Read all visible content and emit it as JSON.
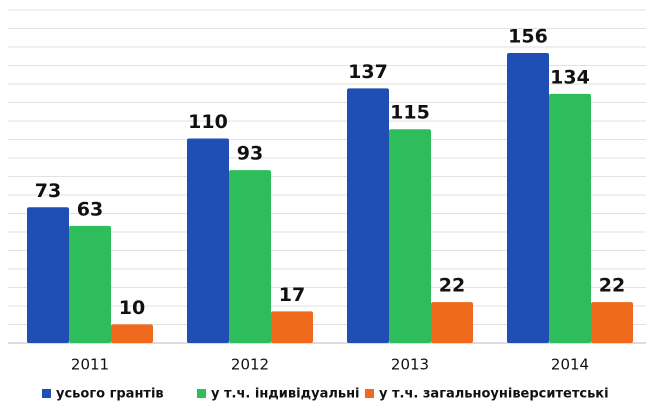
{
  "chart_data": {
    "type": "bar",
    "categories": [
      "2011",
      "2012",
      "2013",
      "2014"
    ],
    "series": [
      {
        "name": "усього грантів",
        "color": "#1f4fb4",
        "values": [
          73,
          110,
          137,
          156
        ]
      },
      {
        "name": "у т.ч. індивідуальні",
        "color": "#2ebd5b",
        "values": [
          63,
          93,
          115,
          134
        ]
      },
      {
        "name": "у т.ч. загальноуніверситетські",
        "color": "#f06a1e",
        "values": [
          10,
          17,
          22,
          22
        ]
      }
    ],
    "grid": true,
    "legend": "bottom"
  }
}
